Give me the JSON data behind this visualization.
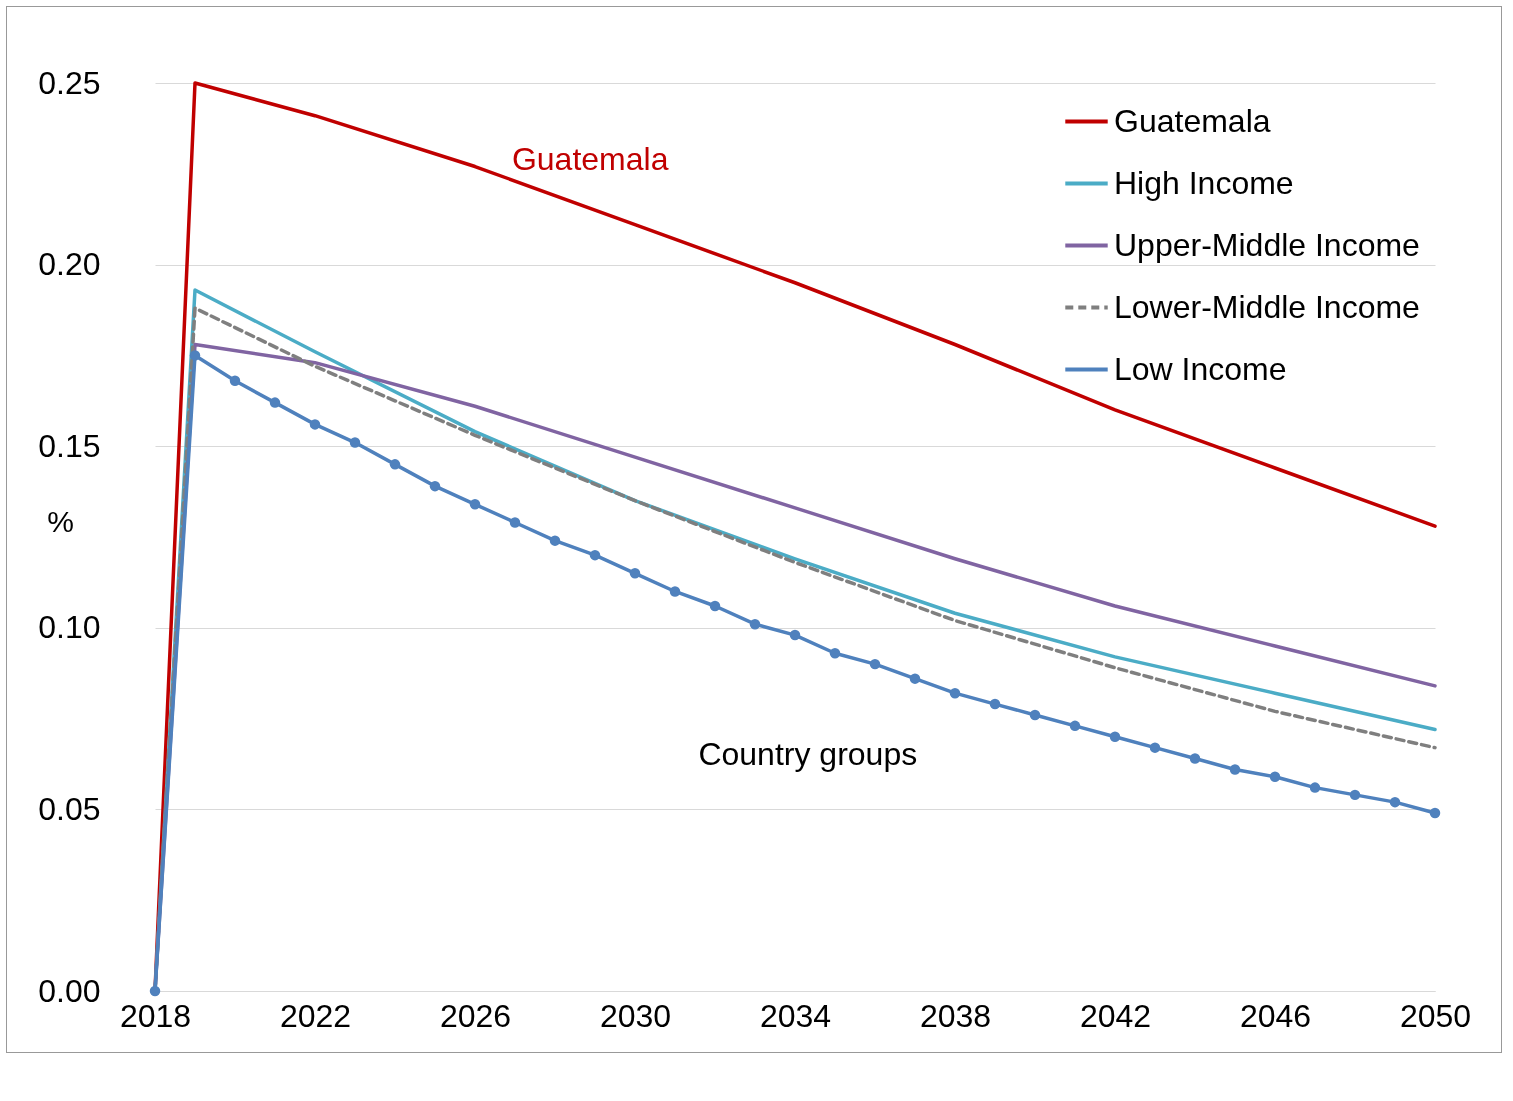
{
  "chart_data": {
    "type": "line",
    "ylabel": "%",
    "xlim": [
      2018,
      2050
    ],
    "xticks": [
      2018,
      2022,
      2026,
      2030,
      2034,
      2038,
      2042,
      2046,
      2050
    ],
    "ylim": [
      0,
      0.25
    ],
    "yticks": [
      {
        "value": 0,
        "label": "0.00"
      },
      {
        "value": 0.05,
        "label": "0.05"
      },
      {
        "value": 0.1,
        "label": "0.10"
      },
      {
        "value": 0.15,
        "label": "0.15"
      },
      {
        "value": 0.2,
        "label": "0.20"
      },
      {
        "value": 0.25,
        "label": "0.25"
      }
    ],
    "grid": "y",
    "legend": "top right",
    "annotations": [
      "Guatemala",
      "Country groups"
    ],
    "series": [
      {
        "name": "Guatemala",
        "color": "#c00000",
        "line_style": "solid",
        "marker": "none",
        "x": [
          2018,
          2019,
          2022,
          2026,
          2030,
          2034,
          2038,
          2042,
          2046,
          2050
        ],
        "values": [
          0,
          0.25,
          0.241,
          0.227,
          0.211,
          0.195,
          0.178,
          0.16,
          0.144,
          0.128
        ]
      },
      {
        "name": "High Income",
        "color": "#4bacc6",
        "line_style": "solid",
        "marker": "none",
        "x": [
          2018,
          2019,
          2022,
          2026,
          2030,
          2034,
          2038,
          2042,
          2046,
          2050
        ],
        "values": [
          0,
          0.193,
          0.176,
          0.154,
          0.135,
          0.119,
          0.104,
          0.092,
          0.082,
          0.072
        ]
      },
      {
        "name": "Upper-Middle Income",
        "color": "#8064a2",
        "line_style": "solid",
        "marker": "none",
        "x": [
          2018,
          2019,
          2022,
          2026,
          2030,
          2034,
          2038,
          2042,
          2046,
          2050
        ],
        "values": [
          0,
          0.178,
          0.173,
          0.161,
          0.147,
          0.133,
          0.119,
          0.106,
          0.095,
          0.084
        ]
      },
      {
        "name": "Lower-Middle Income",
        "color": "#7f7f7f",
        "line_style": "dashed",
        "marker": "none",
        "x": [
          2018,
          2019,
          2022,
          2026,
          2030,
          2034,
          2038,
          2042,
          2046,
          2050
        ],
        "values": [
          0,
          0.188,
          0.172,
          0.153,
          0.135,
          0.118,
          0.102,
          0.089,
          0.077,
          0.067
        ]
      },
      {
        "name": "Low Income",
        "color": "#4f81bd",
        "line_style": "solid",
        "marker": "circle",
        "x": [
          2018,
          2019,
          2020,
          2021,
          2022,
          2023,
          2024,
          2025,
          2026,
          2027,
          2028,
          2029,
          2030,
          2031,
          2032,
          2033,
          2034,
          2035,
          2036,
          2037,
          2038,
          2039,
          2040,
          2041,
          2042,
          2043,
          2044,
          2045,
          2046,
          2047,
          2048,
          2049,
          2050
        ],
        "values": [
          0,
          0.175,
          0.168,
          0.162,
          0.156,
          0.151,
          0.145,
          0.139,
          0.134,
          0.129,
          0.124,
          0.12,
          0.115,
          0.11,
          0.106,
          0.101,
          0.098,
          0.093,
          0.09,
          0.086,
          0.082,
          0.079,
          0.076,
          0.073,
          0.07,
          0.067,
          0.064,
          0.061,
          0.059,
          0.056,
          0.054,
          0.052,
          0.049
        ]
      }
    ]
  }
}
